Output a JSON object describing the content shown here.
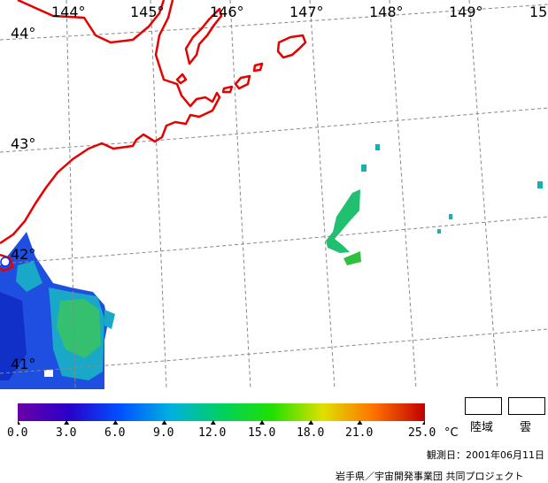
{
  "map": {
    "longitudes": [
      "144°",
      "145°",
      "146°",
      "147°",
      "148°",
      "149°",
      "15"
    ],
    "latitudes": [
      "44°",
      "43°",
      "42°",
      "41°"
    ],
    "colors": {
      "coastline": "#e60000",
      "grid": "#888888",
      "land_mask": "#ffffff"
    }
  },
  "legend": {
    "ticks": [
      "0.0",
      "3.0",
      "6.0",
      "9.0",
      "12.0",
      "15.0",
      "18.0",
      "21.0",
      "25.0"
    ],
    "unit": "°C",
    "gradient": [
      "#6a00a8",
      "#2a00c8",
      "#0050ff",
      "#00b0e0",
      "#00d060",
      "#20e000",
      "#e0e000",
      "#ff7000",
      "#c00000"
    ],
    "land_box_label": "陸域",
    "cloud_box_label": "雲"
  },
  "observation_date": "観測日：2001年06月11日",
  "credit": "岩手県／宇宙開発事業団 共同プロジェクト"
}
